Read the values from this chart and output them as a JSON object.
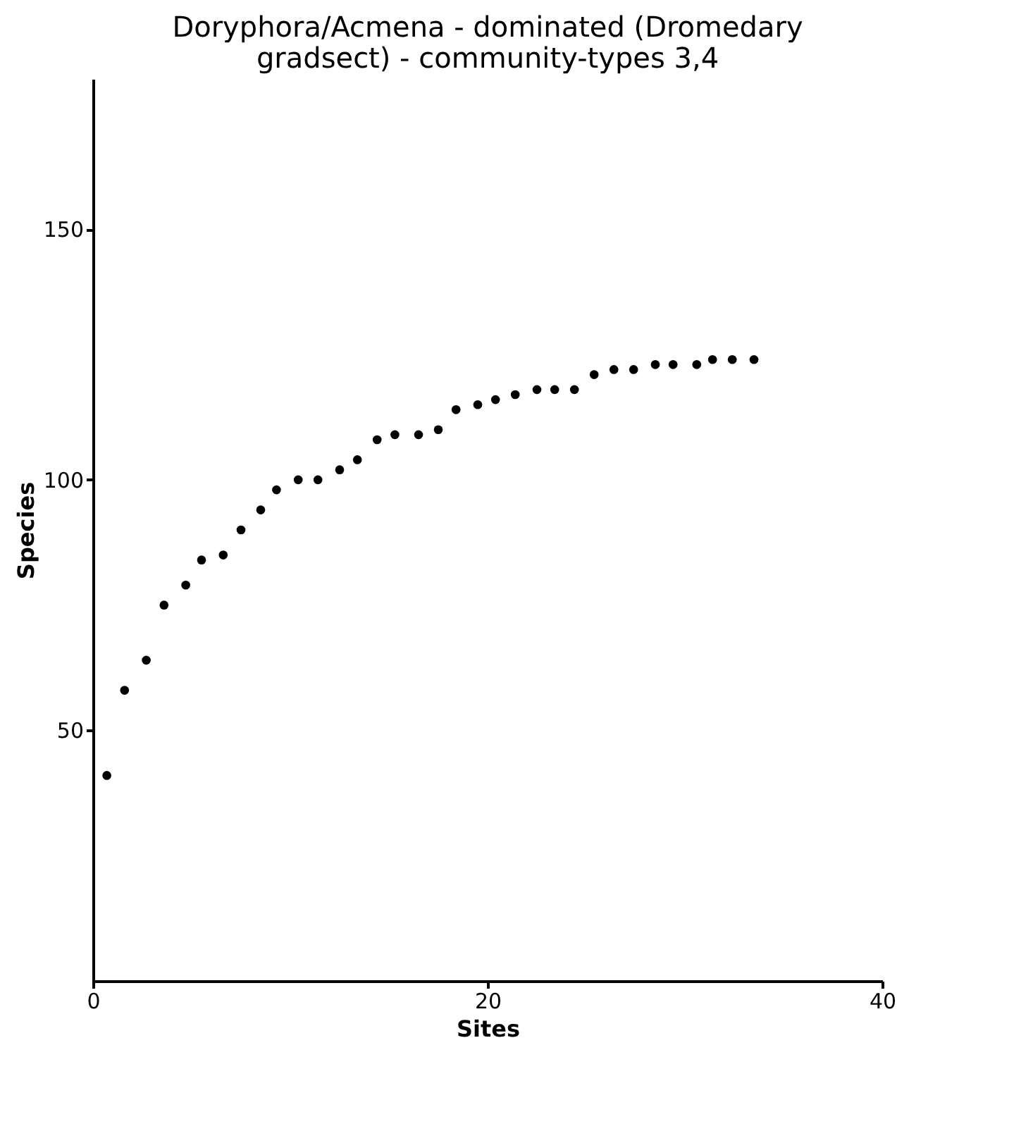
{
  "chart_data": {
    "type": "scatter",
    "title": "Doryphora/Acmena - dominated (Dromedary gradsect) - community-types 3,4",
    "xlabel": "Sites",
    "ylabel": "Species",
    "x": [
      0.7,
      1.6,
      2.7,
      3.6,
      4.7,
      5.5,
      6.6,
      7.5,
      8.5,
      9.3,
      10.4,
      11.4,
      12.5,
      13.4,
      14.4,
      15.3,
      16.5,
      17.5,
      18.4,
      19.5,
      20.4,
      21.4,
      22.5,
      23.4,
      24.4,
      25.4,
      26.4,
      27.4,
      28.5,
      29.4,
      30.6,
      31.4,
      32.4,
      33.5
    ],
    "series": [
      {
        "color": "#000000",
        "values": [
          41,
          58,
          64,
          75,
          79,
          84,
          85,
          90,
          94,
          98,
          100,
          100,
          102,
          104,
          108,
          109,
          109,
          110,
          114,
          115,
          116,
          117,
          118,
          118,
          118,
          121,
          122,
          122,
          123,
          123,
          123,
          124,
          124,
          124
        ]
      }
    ],
    "xlim": [
      0,
      40
    ],
    "xticks": [
      0,
      20,
      40
    ],
    "ylim": [
      0,
      180
    ],
    "yticks": [
      50,
      100,
      150
    ],
    "grid": false,
    "legend": false,
    "marker": "circle"
  }
}
